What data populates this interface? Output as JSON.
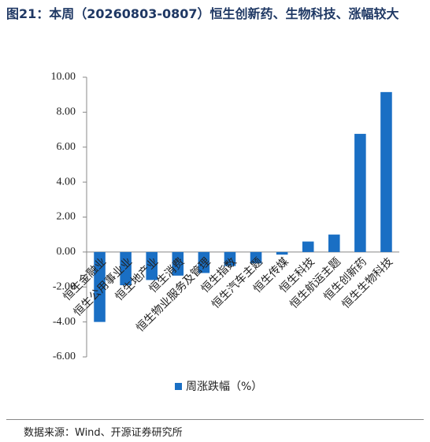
{
  "chart_data": {
    "type": "bar",
    "title": "图21：本周（20260803-0807）恒生创新药、生物科技、涨幅较大",
    "categories": [
      "恒生金融业",
      "恒生公用事业业",
      "恒生地产业",
      "恒生消费",
      "恒生物业服务及管理",
      "恒生指数",
      "恒生汽车主题",
      "恒生传媒",
      "恒生科技",
      "恒生航运主题",
      "恒生创新药",
      "恒生生物科技"
    ],
    "series": [
      {
        "name": "周涨跌幅（%）",
        "color": "#1a6fc4",
        "values": [
          -4.0,
          -1.9,
          -1.6,
          -1.35,
          -1.2,
          -0.8,
          -0.65,
          -0.15,
          0.6,
          1.0,
          6.76,
          9.15
        ]
      }
    ],
    "ylim": [
      -6,
      10
    ],
    "yticks": [
      {
        "value": -6,
        "label": "-6.00"
      },
      {
        "value": -4,
        "label": "-4.00"
      },
      {
        "value": -2,
        "label": "-2.00"
      },
      {
        "value": 0,
        "label": "0.00"
      },
      {
        "value": 2,
        "label": "2.00"
      },
      {
        "value": 4,
        "label": "4.00"
      },
      {
        "value": 6,
        "label": "6.00"
      },
      {
        "value": 8,
        "label": "8.00"
      },
      {
        "value": 10,
        "label": "10.00"
      }
    ],
    "grid": false,
    "source": "数据来源：Wind、开源证券研究所"
  }
}
